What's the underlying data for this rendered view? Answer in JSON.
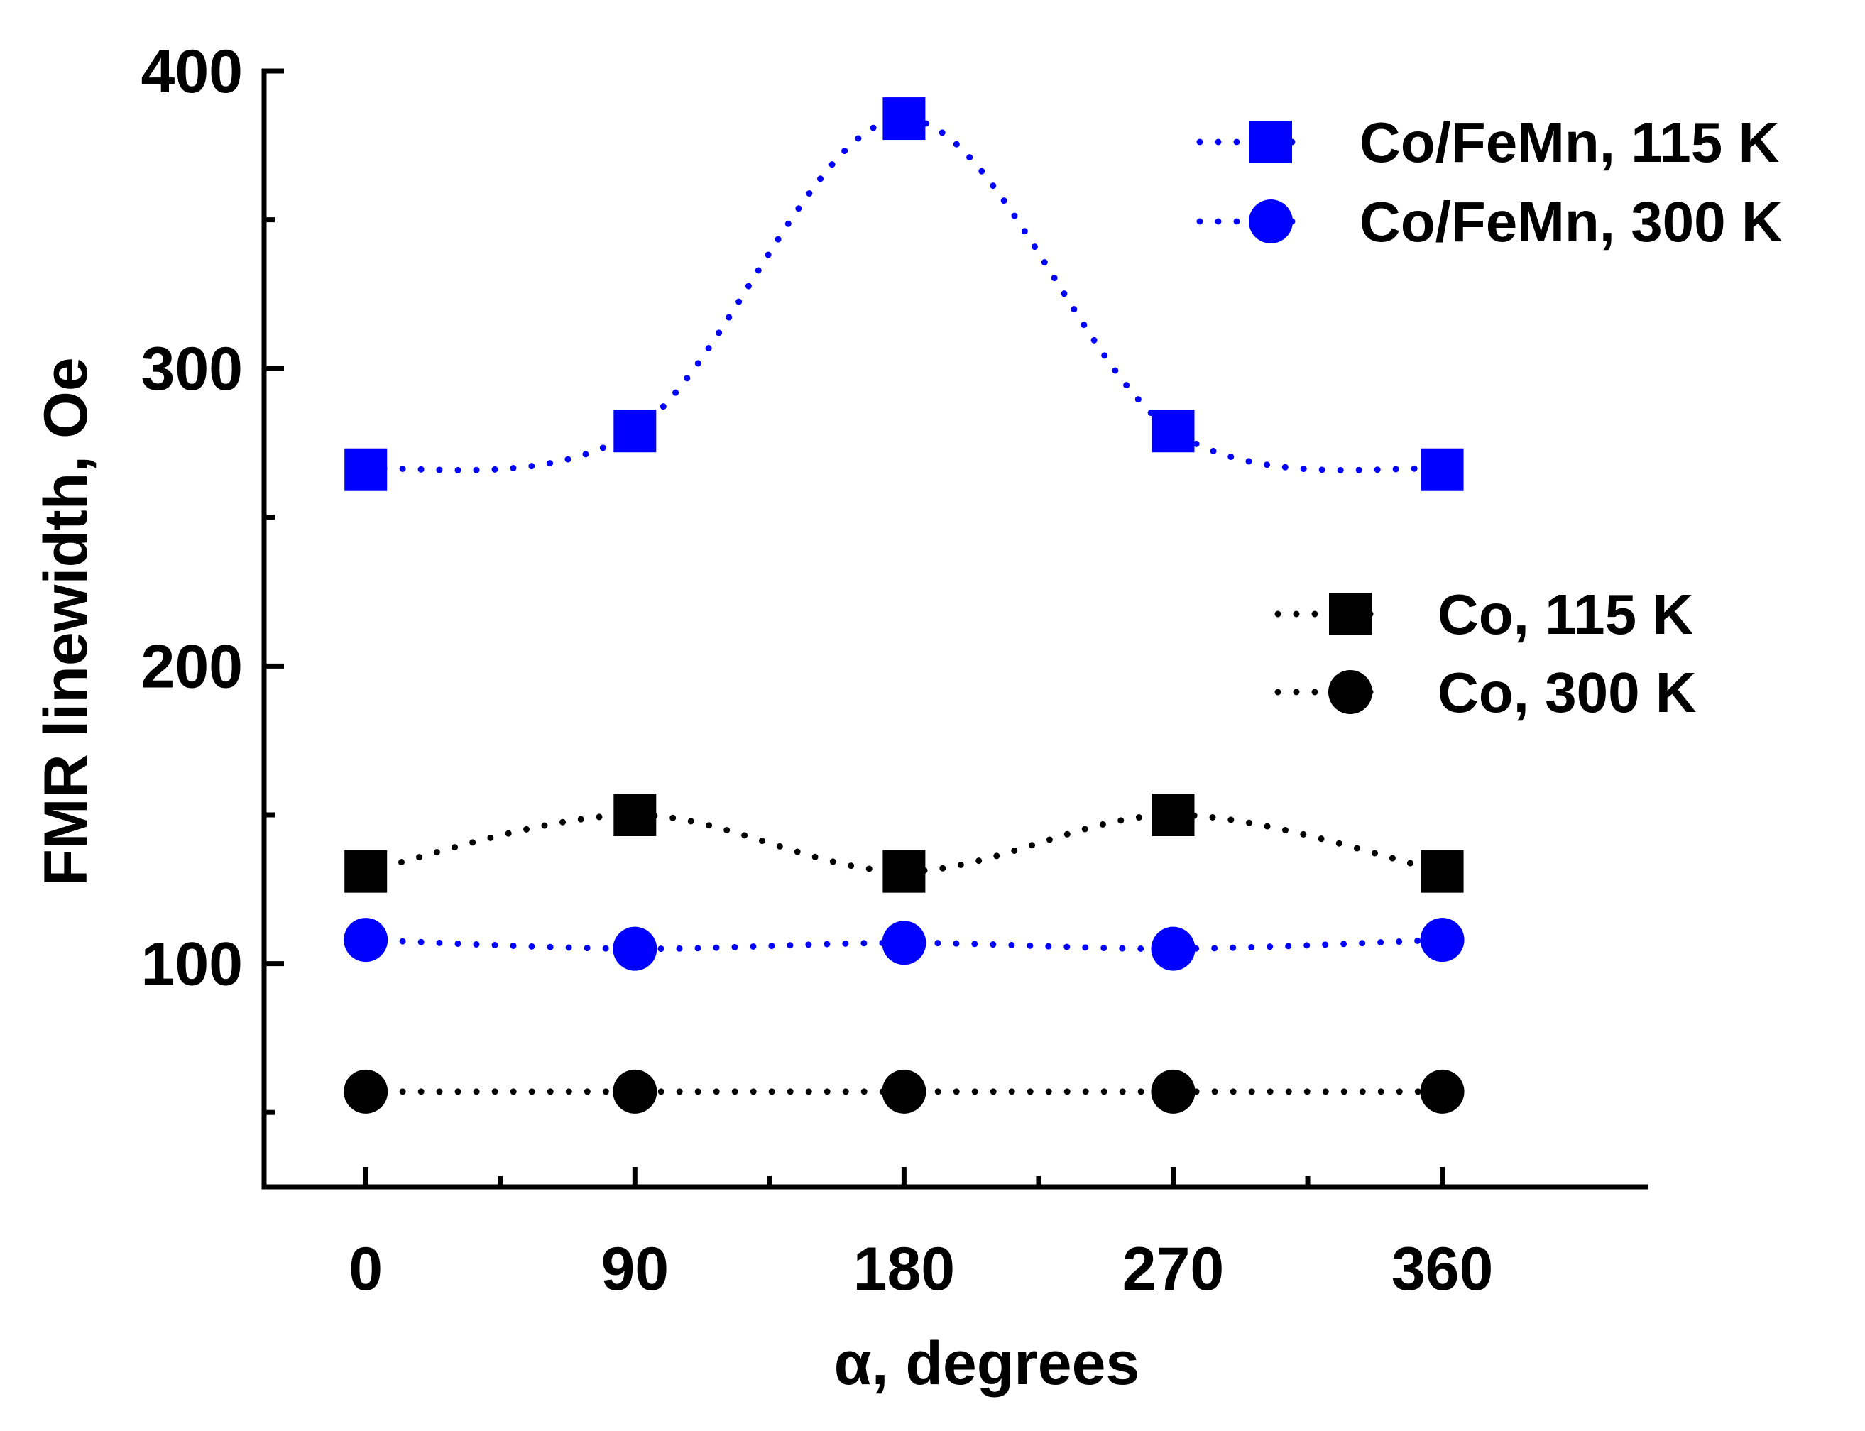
{
  "chart_data": {
    "type": "line",
    "xlabel": "α, degrees",
    "ylabel": "FMR linewidth, Oe",
    "xlim": [
      -34,
      428
    ],
    "ylim": [
      25,
      400
    ],
    "x_ticks": [
      0,
      90,
      180,
      270,
      360
    ],
    "x_tick_labels": [
      "0",
      "90",
      "180",
      "270",
      "360"
    ],
    "y_ticks": [
      100,
      200,
      300,
      400
    ],
    "y_tick_labels": [
      "100",
      "200",
      "300",
      "400"
    ],
    "x_minor_ticks": [
      45,
      135,
      225,
      315
    ],
    "y_minor_ticks": [
      50,
      150,
      250,
      350
    ],
    "grid": false,
    "legend_placement": "right",
    "line_style": "dotted spline",
    "series": [
      {
        "name": "Co/FeMn, 115 K",
        "marker": "square",
        "color": "#0000ff",
        "x": [
          0,
          90,
          180,
          270,
          360
        ],
        "values": [
          266,
          279,
          384,
          279,
          266
        ]
      },
      {
        "name": "Co/FeMn, 300 K",
        "marker": "circle",
        "color": "#0000ff",
        "x": [
          0,
          90,
          180,
          270,
          360
        ],
        "values": [
          108,
          105,
          107,
          105,
          108
        ]
      },
      {
        "name": "Co, 115 K",
        "marker": "square",
        "color": "#000000",
        "x": [
          0,
          90,
          180,
          270,
          360
        ],
        "values": [
          131,
          150,
          131,
          150,
          131
        ]
      },
      {
        "name": "Co, 300 K",
        "marker": "circle",
        "color": "#000000",
        "x": [
          0,
          90,
          180,
          270,
          360
        ],
        "values": [
          57,
          57,
          57,
          57,
          57
        ]
      }
    ],
    "legends": [
      {
        "placement": "top-right",
        "entries": [
          "Co/FeMn, 115 K",
          "Co/FeMn, 300 K"
        ]
      },
      {
        "placement": "middle-right",
        "entries": [
          "Co, 115 K",
          "Co, 300 K"
        ]
      }
    ]
  }
}
